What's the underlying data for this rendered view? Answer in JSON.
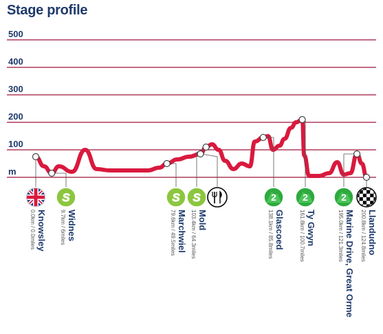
{
  "title": "Stage profile",
  "colors": {
    "profile": "#d9193e",
    "grid": "#a0133a",
    "text": "#1f3a6b",
    "sprint": "#8cc63f",
    "sprint_letter": "#d9193e",
    "climb": "#2eaa3e",
    "finish": "#000000"
  },
  "chart_data": {
    "type": "line",
    "title": "Stage profile",
    "ylabel": "m",
    "ylim": [
      0,
      500
    ],
    "y_ticks": [
      500,
      400,
      300,
      200,
      100
    ],
    "grid": true,
    "x": [
      0,
      9.7,
      79.6,
      103.4,
      138.1,
      161.8,
      195,
      200.8
    ],
    "waypoints": [
      {
        "name": "Knowsley",
        "dist": "0.0km / 0.0miles",
        "icon": "flag-uk-icon",
        "badge": "",
        "km": 0,
        "alt": 75
      },
      {
        "name": "Widnes",
        "dist": "9.7km / 6miles",
        "icon": "sprint-icon",
        "badge": "S",
        "km": 9.7,
        "alt": 15
      },
      {
        "name": "Marchwiel",
        "dist": "79.6km / 49.5miles",
        "icon": "sprint-icon",
        "badge": "S",
        "km": 79.6,
        "alt": 50
      },
      {
        "name": "Mold",
        "dist": "103.4km / 64.3miles",
        "icon": "sprint-icon",
        "badge": "S",
        "km": 103.4,
        "alt": 110
      },
      {
        "name": "",
        "dist": "",
        "icon": "feed-zone-icon",
        "badge": "",
        "km": 100,
        "alt": 85
      },
      {
        "name": "Glascoed",
        "dist": "138.1km / 85.8miles",
        "icon": "climb-icon",
        "badge": "2",
        "km": 138.1,
        "alt": 145
      },
      {
        "name": "Ty Gwyn",
        "dist": "161.8km / 100.7miles",
        "icon": "climb-icon",
        "badge": "2",
        "km": 161.8,
        "alt": 210
      },
      {
        "name": "Marine Drive, Great Orme",
        "dist": "195.0km / 121.3miles",
        "icon": "climb-icon",
        "badge": "2",
        "km": 195,
        "alt": 85
      },
      {
        "name": "Llandudno",
        "dist": "200.8km / 124.8miles",
        "icon": "finish-flag-icon",
        "badge": "",
        "km": 200.8,
        "alt": 0
      }
    ],
    "profile": {
      "km": [
        0,
        5,
        9.7,
        14,
        22,
        30,
        37,
        45,
        55,
        68,
        75,
        79.6,
        86,
        93,
        100,
        103.4,
        107,
        111,
        115,
        120,
        125,
        130,
        133,
        138.1,
        141,
        144,
        148,
        151,
        155,
        158,
        161.8,
        163,
        166,
        172,
        178,
        183,
        187,
        191,
        195,
        198,
        200.8
      ],
      "alt": [
        75,
        40,
        15,
        40,
        20,
        100,
        30,
        25,
        25,
        25,
        35,
        50,
        65,
        75,
        85,
        110,
        120,
        100,
        60,
        30,
        50,
        40,
        130,
        145,
        150,
        100,
        115,
        140,
        180,
        200,
        210,
        80,
        5,
        5,
        15,
        55,
        10,
        15,
        85,
        50,
        0
      ]
    }
  }
}
